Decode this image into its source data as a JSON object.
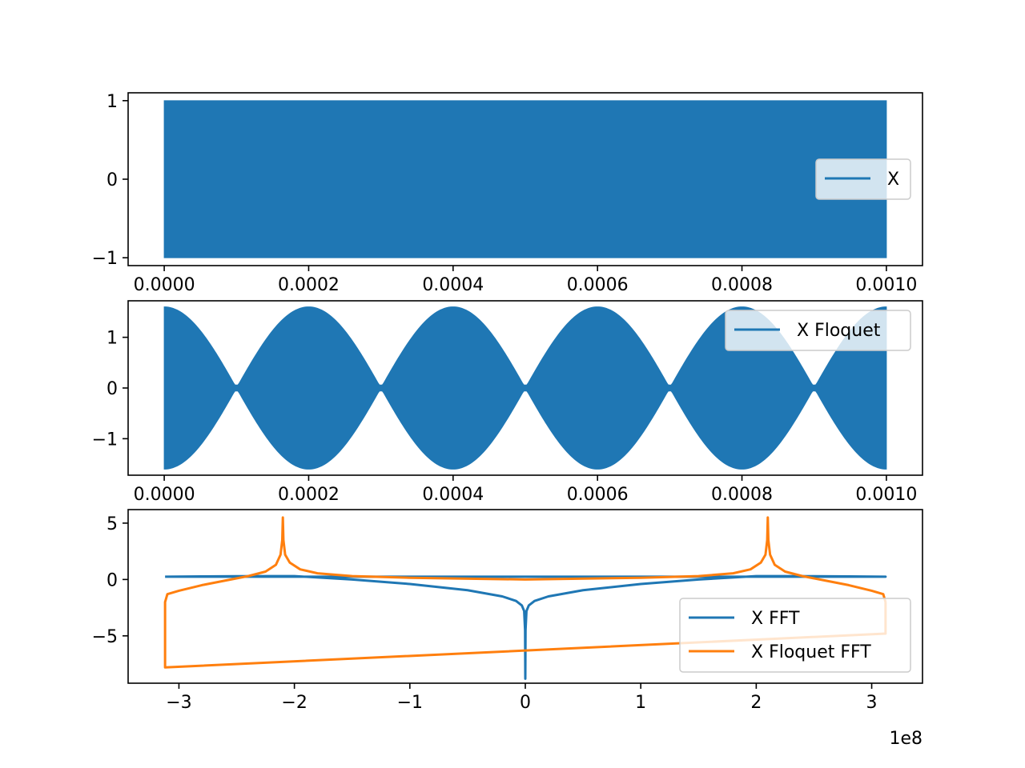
{
  "chart_data": [
    {
      "type": "area",
      "title": "",
      "xlabel": "",
      "ylabel": "",
      "xlim": [
        -5e-05,
        0.00105
      ],
      "ylim": [
        -1.1,
        1.1
      ],
      "xticks": [
        0.0,
        0.0002,
        0.0004,
        0.0006,
        0.0008,
        0.001
      ],
      "xtick_labels": [
        "0.0000",
        "0.0002",
        "0.0004",
        "0.0006",
        "0.0008",
        "0.0010"
      ],
      "yticks": [
        -1,
        0,
        1
      ],
      "ytick_labels": [
        "−1",
        "0",
        "1"
      ],
      "legend": {
        "placement": "center-right",
        "entries": [
          {
            "label": "X",
            "color": "#1f77b4"
          }
        ]
      },
      "series": [
        {
          "name": "X",
          "color": "#1f77b4",
          "kind": "envelope",
          "x": [
            0.0,
            0.001
          ],
          "upper": [
            1.0,
            1.0
          ],
          "lower": [
            -1.0,
            -1.0
          ]
        }
      ]
    },
    {
      "type": "area",
      "title": "",
      "xlabel": "",
      "ylabel": "",
      "xlim": [
        -5e-05,
        0.00105
      ],
      "ylim": [
        -1.72,
        1.72
      ],
      "xticks": [
        0.0,
        0.0002,
        0.0004,
        0.0006,
        0.0008,
        0.001
      ],
      "xtick_labels": [
        "0.0000",
        "0.0002",
        "0.0004",
        "0.0006",
        "0.0008",
        "0.0010"
      ],
      "yticks": [
        -1,
        0,
        1
      ],
      "ytick_labels": [
        "−1",
        "0",
        "1"
      ],
      "legend": {
        "placement": "upper-right",
        "entries": [
          {
            "label": "X Floquet",
            "color": "#1f77b4"
          }
        ]
      },
      "series": [
        {
          "name": "X Floquet",
          "color": "#1f77b4",
          "kind": "beat-envelope",
          "x_start": 0.0,
          "x_end": 0.001,
          "amplitude_max": 1.6,
          "amplitude_min": 0.06,
          "peaks_x": [
            0.0,
            0.0002,
            0.0004,
            0.0006,
            0.0008,
            0.001
          ],
          "nodes_x": [
            0.0001,
            0.0003,
            0.0005,
            0.0007,
            0.0009
          ]
        }
      ]
    },
    {
      "type": "line",
      "title": "",
      "xlabel": "",
      "ylabel": "",
      "offset_text": "1e8",
      "xlim": [
        -3.44,
        3.44
      ],
      "ylim": [
        -9.2,
        6.2
      ],
      "xticks": [
        -3,
        -2,
        -1,
        0,
        1,
        2,
        3
      ],
      "xtick_labels": [
        "−3",
        "−2",
        "−1",
        "0",
        "1",
        "2",
        "3"
      ],
      "yticks": [
        -5,
        0,
        5
      ],
      "ytick_labels": [
        "−5",
        "0",
        "5"
      ],
      "legend": {
        "placement": "lower-right",
        "entries": [
          {
            "label": "X FFT",
            "color": "#1f77b4"
          },
          {
            "label": "X Floquet FFT",
            "color": "#ff7f0e"
          }
        ]
      },
      "series": [
        {
          "name": "X FFT",
          "color": "#1f77b4",
          "x": [
            -3.12,
            -2.8,
            -2.5,
            -2.2,
            -2.0,
            -1.5,
            -1.0,
            -0.5,
            -0.2,
            -0.08,
            -0.03,
            -0.01,
            -0.002,
            0.0,
            0.002,
            0.01,
            0.03,
            0.08,
            0.2,
            0.5,
            1.0,
            1.5,
            2.0,
            2.2,
            2.5,
            2.8,
            3.12,
            3.12,
            -3.12
          ],
          "y": [
            0.25,
            0.27,
            0.29,
            0.3,
            0.3,
            0.0,
            -0.4,
            -0.95,
            -1.5,
            -1.9,
            -2.3,
            -2.8,
            -4.5,
            -8.8,
            -4.5,
            -2.8,
            -2.3,
            -1.9,
            -1.5,
            -0.95,
            -0.4,
            0.0,
            0.3,
            0.3,
            0.29,
            0.27,
            0.25,
            0.25,
            0.25
          ]
        },
        {
          "name": "X Floquet FFT",
          "color": "#ff7f0e",
          "x": [
            3.12,
            3.1,
            3.0,
            2.8,
            2.6,
            2.4,
            2.25,
            2.16,
            2.12,
            2.105,
            2.1,
            2.095,
            2.08,
            2.04,
            1.95,
            1.8,
            1.5,
            1.0,
            0.0,
            -1.0,
            -1.5,
            -1.8,
            -1.95,
            -2.04,
            -2.08,
            -2.095,
            -2.1,
            -2.105,
            -2.12,
            -2.16,
            -2.25,
            -2.4,
            -2.6,
            -2.8,
            -3.0,
            -3.1,
            -3.12,
            -3.12,
            3.12,
            3.12
          ],
          "y": [
            -2.0,
            -1.3,
            -1.0,
            -0.5,
            -0.1,
            0.3,
            0.7,
            1.3,
            2.2,
            3.5,
            5.5,
            3.5,
            2.2,
            1.5,
            0.9,
            0.55,
            0.3,
            0.15,
            0.0,
            0.15,
            0.3,
            0.55,
            0.9,
            1.5,
            2.2,
            3.5,
            5.5,
            3.5,
            2.2,
            1.3,
            0.7,
            0.3,
            -0.1,
            -0.5,
            -1.0,
            -1.3,
            -2.0,
            -7.8,
            -4.8,
            -2.0
          ]
        }
      ]
    }
  ]
}
